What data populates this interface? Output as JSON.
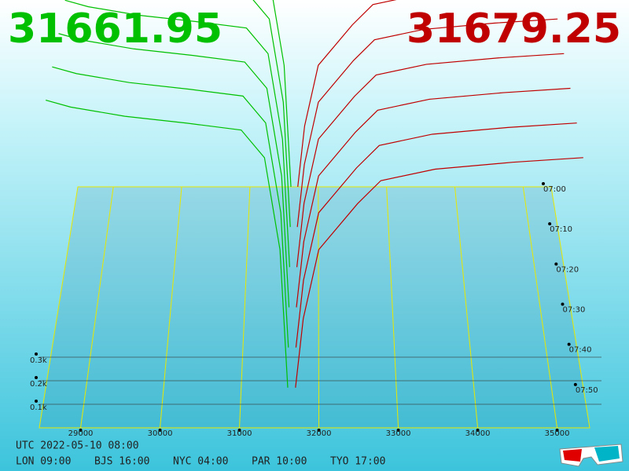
{
  "chart_data": {
    "type": "depth3d",
    "bid_price": 31661.95,
    "ask_price": 31679.25,
    "xlim": [
      28480,
      35410
    ],
    "xticks": [
      29000,
      30000,
      31000,
      32000,
      33000,
      34000,
      35000
    ],
    "ylim": [
      0,
      1400
    ],
    "yticks": [
      {
        "value": 100,
        "label": "0.1k"
      },
      {
        "value": 200,
        "label": "0.2k"
      },
      {
        "value": 300,
        "label": "0.3k"
      }
    ],
    "time_labels": [
      "07:00",
      "07:10",
      "07:20",
      "07:30",
      "07:40",
      "07:50"
    ],
    "series": [
      {
        "color": "#00c000",
        "x": [
          28480,
          28800,
          29500,
          30300,
          31000,
          31300,
          31500,
          31600
        ],
        "values": [
          1250,
          1220,
          1180,
          1150,
          1120,
          1000,
          600,
          0
        ]
      },
      {
        "color": "#c00000",
        "x": [
          31700,
          31800,
          32000,
          32500,
          32800,
          33500,
          34500,
          35410
        ],
        "values": [
          0,
          300,
          600,
          800,
          900,
          950,
          980,
          1000
        ]
      }
    ],
    "footer": {
      "utc": "UTC 2022-05-10 08:00",
      "cities": [
        "LON 09:00",
        "BJS 16:00",
        "NYC 04:00",
        "PAR 10:00",
        "TYO 17:00"
      ]
    }
  }
}
